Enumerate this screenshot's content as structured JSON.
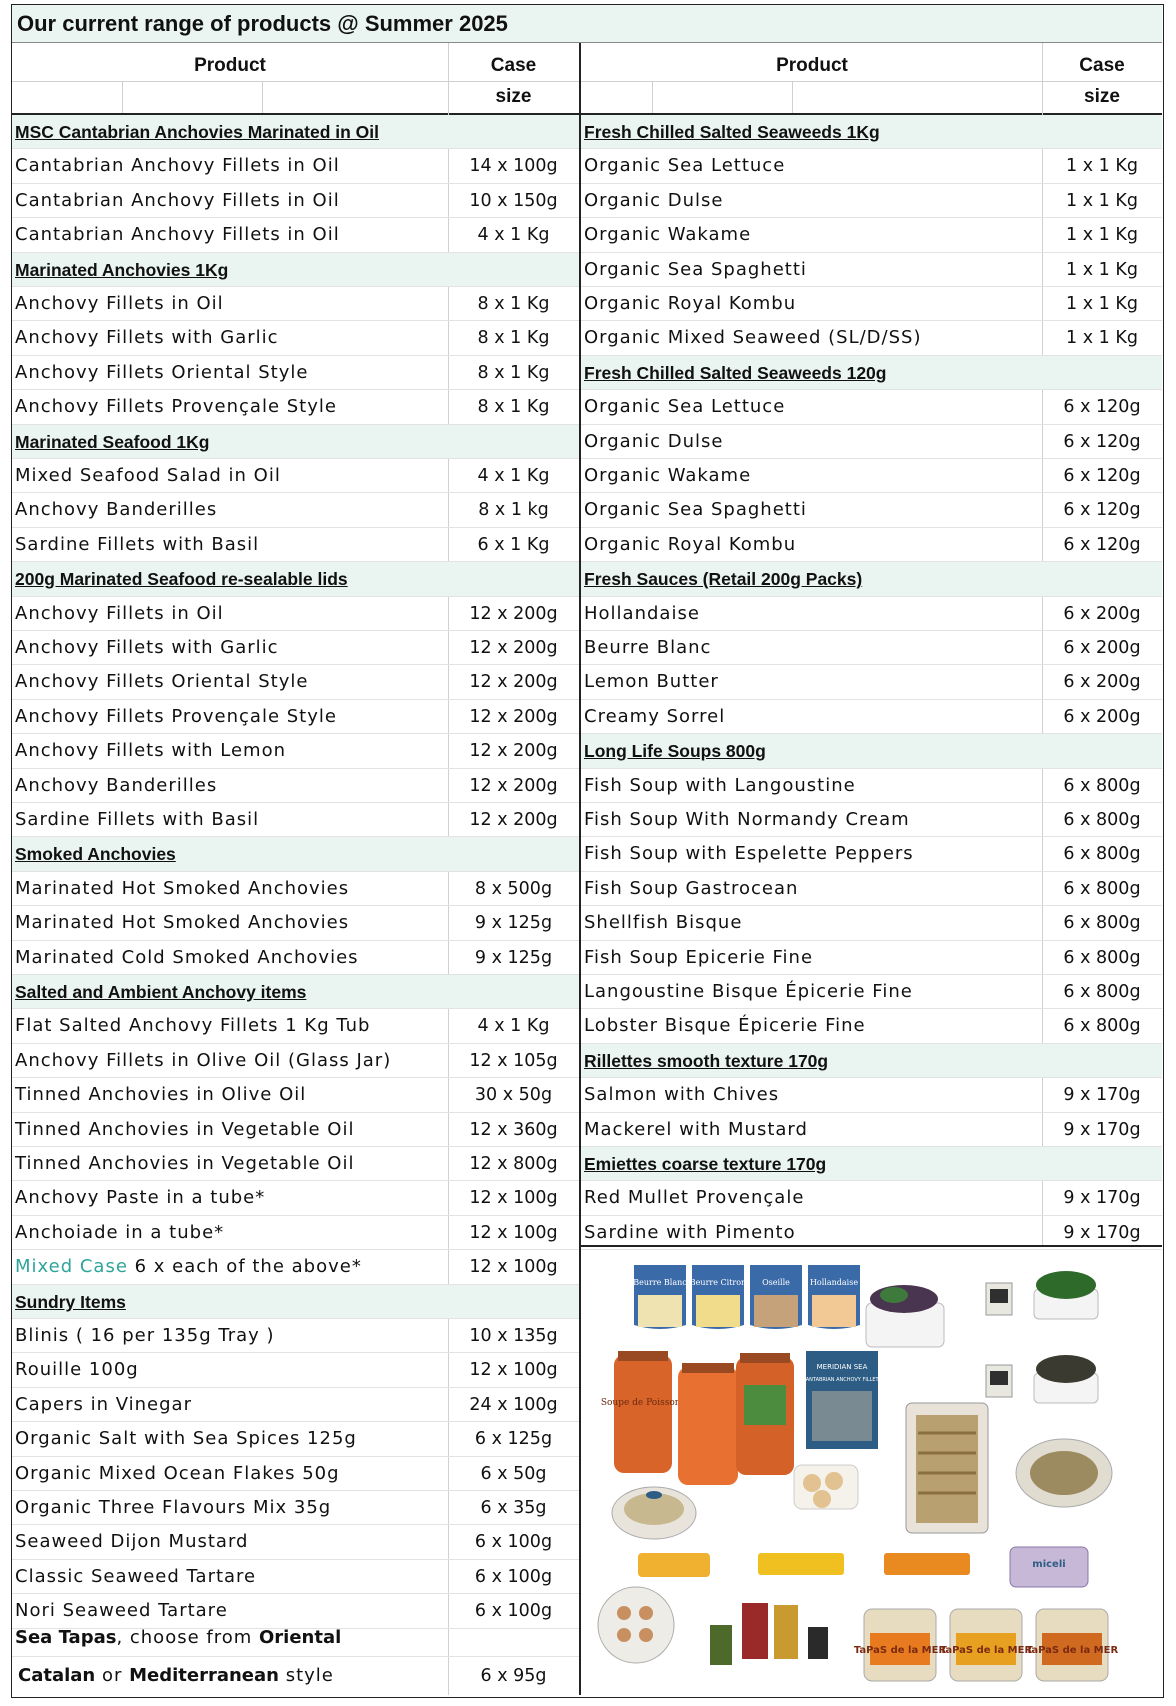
{
  "title": "Our current range of products @  Summer 2025",
  "headers": {
    "product": "Product",
    "case1": "Case",
    "case2": "size"
  },
  "left_rows": [
    {
      "name": "MSC  Cantabrian Anchovies Marinated in Oil ",
      "size": "",
      "section": true
    },
    {
      "name": "Cantabrian Anchovy Fillets in Oil",
      "size": "14 x 100g"
    },
    {
      "name": "Cantabrian Anchovy Fillets in Oil",
      "size": "10 x 150g"
    },
    {
      "name": "Cantabrian Anchovy Fillets in Oil",
      "size": "4 x 1 Kg"
    },
    {
      "name": "Marinated Anchovies 1Kg",
      "size": "",
      "section": true
    },
    {
      "name": "Anchovy Fillets in Oil",
      "size": "8 x 1 Kg"
    },
    {
      "name": "Anchovy Fillets with Garlic",
      "size": "8 x 1 Kg"
    },
    {
      "name": "Anchovy Fillets Oriental Style",
      "size": "8 x 1 Kg"
    },
    {
      "name": "Anchovy Fillets Provençale Style",
      "size": "8 x 1 Kg"
    },
    {
      "name": "Marinated Seafood 1Kg",
      "size": "",
      "section": true
    },
    {
      "name": "Mixed Seafood Salad  in Oil",
      "size": "4 x 1 Kg"
    },
    {
      "name": "Anchovy Banderilles",
      "size": "8 x 1 kg"
    },
    {
      "name": "Sardine Fillets with Basil",
      "size": "6 x 1 Kg"
    },
    {
      "name": "200g  Marinated Seafood re-sealable lids",
      "size": "",
      "section": true
    },
    {
      "name": "Anchovy Fillets in Oil",
      "size": "12 x 200g"
    },
    {
      "name": "Anchovy Fillets with Garlic",
      "size": "12 x 200g"
    },
    {
      "name": "Anchovy Fillets Oriental Style",
      "size": "12 x 200g"
    },
    {
      "name": "Anchovy Fillets Provençale Style",
      "size": "12 x 200g"
    },
    {
      "name": "Anchovy Fillets with Lemon",
      "size": "12 x 200g"
    },
    {
      "name": "Anchovy Banderilles",
      "size": "12 x 200g"
    },
    {
      "name": "Sardine Fillets with Basil",
      "size": "12 x 200g"
    },
    {
      "name": "Smoked  Anchovies",
      "size": "",
      "section": true
    },
    {
      "name": "Marinated  Hot Smoked Anchovies",
      "size": "8 x 500g"
    },
    {
      "name": "Marinated Hot Smoked Anchovies",
      "size": "9 x 125g"
    },
    {
      "name": "Marinated Cold Smoked Anchovies",
      "size": "9 x 125g"
    },
    {
      "name": "Salted and Ambient Anchovy items",
      "size": "",
      "section": true
    },
    {
      "name": "Flat Salted Anchovy Fillets  1 Kg Tub",
      "size": "4 x 1 Kg"
    },
    {
      "name": "Anchovy Fillets in Olive Oil (Glass Jar)",
      "size": "12 x 105g"
    },
    {
      "name": "Tinned Anchovies in Olive Oil",
      "size": "30 x 50g"
    },
    {
      "name": "Tinned Anchovies in Vegetable Oil",
      "size": "12 x 360g"
    },
    {
      "name": "Tinned Anchovies in Vegetable Oil",
      "size": "12 x 800g"
    },
    {
      "name": "Anchovy Paste in a tube*",
      "size": "12 x 100g"
    },
    {
      "name": "Anchoiade in a tube*",
      "size": "12 x 100g"
    },
    {
      "name": " 6 x each of the above*",
      "highlight": "Mixed Case",
      "size": "12 x 100g"
    },
    {
      "name": "Sundry Items",
      "size": "",
      "section": true
    },
    {
      "name": "Blinis ( 16 per 135g Tray )",
      "size": "10 x 135g"
    },
    {
      "name": "Rouille 100g",
      "size": "12 x 100g"
    },
    {
      "name": "Capers in Vinegar",
      "size": "24 x 100g"
    },
    {
      "name": "Organic Salt with Sea Spices 125g",
      "size": "6 x 125g"
    },
    {
      "name": "Organic Mixed Ocean Flakes 50g",
      "size": "6 x 50g"
    },
    {
      "name": "Organic Three Flavours Mix 35g",
      "size": "6 x 35g"
    },
    {
      "name": "Seaweed Dijon Mustard",
      "size": "6 x 100g"
    },
    {
      "name": "Classic Seaweed Tartare",
      "size": "6 x 100g"
    },
    {
      "name": "Nori  Seaweed Tartare",
      "size": "6 x 100g"
    }
  ],
  "tapas": {
    "line1_a": "Sea Tapas",
    "line1_b": ", choose from ",
    "line1_c": "Oriental",
    "line2_a": "Catalan",
    "line2_b": " or ",
    "line2_c": "Mediterranean",
    "line2_d": " style",
    "size": "6 x 95g"
  },
  "right_rows": [
    {
      "name": "Fresh Chilled Salted Seaweeds 1Kg",
      "size": "",
      "section": true
    },
    {
      "name": "Organic Sea Lettuce",
      "size": "1 x 1 Kg"
    },
    {
      "name": "Organic Dulse",
      "size": "1 x 1 Kg"
    },
    {
      "name": "Organic Wakame",
      "size": "1 x 1 Kg"
    },
    {
      "name": "Organic Sea Spaghetti",
      "size": "1 x 1 Kg"
    },
    {
      "name": "Organic Royal Kombu",
      "size": "1 x 1 Kg"
    },
    {
      "name": "Organic Mixed Seaweed (SL/D/SS)",
      "size": "1 x 1 Kg"
    },
    {
      "name": "Fresh Chilled Salted Seaweeds 120g",
      "size": "",
      "section": true
    },
    {
      "name": "Organic Sea Lettuce",
      "size": "6 x 120g"
    },
    {
      "name": "Organic Dulse",
      "size": "6 x 120g"
    },
    {
      "name": "Organic Wakame",
      "size": "6 x 120g"
    },
    {
      "name": "Organic Sea Spaghetti",
      "size": "6 x 120g"
    },
    {
      "name": "Organic Royal Kombu",
      "size": "6 x 120g"
    },
    {
      "name": "Fresh Sauces (Retail 200g Packs)",
      "size": "",
      "section": true
    },
    {
      "name": "Hollandaise",
      "size": "6 x 200g"
    },
    {
      "name": "Beurre Blanc",
      "size": "6 x 200g"
    },
    {
      "name": "Lemon Butter",
      "size": "6 x 200g"
    },
    {
      "name": "Creamy Sorrel",
      "size": "6 x 200g"
    },
    {
      "name": "Long Life Soups 800g",
      "size": "",
      "section": true
    },
    {
      "name": "Fish Soup with Langoustine",
      "size": "6 x 800g"
    },
    {
      "name": "Fish Soup With Normandy Cream",
      "size": "6 x 800g"
    },
    {
      "name": "Fish Soup with Espelette Peppers",
      "size": "6 x 800g"
    },
    {
      "name": "Fish Soup Gastrocean",
      "size": "6 x 800g"
    },
    {
      "name": "Shellfish Bisque",
      "size": "6 x 800g"
    },
    {
      "name": "Fish Soup Epicerie Fine",
      "size": "6 x 800g"
    },
    {
      "name": "Langoustine Bisque Épicerie Fine",
      "size": "6 x 800g"
    },
    {
      "name": "Lobster Bisque Épicerie Fine",
      "size": "6 x 800g"
    },
    {
      "name": "Rillettes smooth texture 170g",
      "size": "",
      "section": true
    },
    {
      "name": "Salmon with Chives",
      "size": "9 x 170g"
    },
    {
      "name": "Mackerel with Mustard",
      "size": "9 x 170g"
    },
    {
      "name": "Emiettes coarse texture 170g",
      "size": "",
      "section": true
    },
    {
      "name": "Red Mullet Provençale",
      "size": "9 x 170g"
    },
    {
      "name": "Sardine with Pimento",
      "size": "9 x 170g"
    }
  ],
  "photo_labels": {
    "p1": "Beurre Blanc",
    "p2": "Beurre Citron",
    "p3": "Oseille",
    "p4": "Hollandaise",
    "jar": "Soupe de Poissons",
    "tin_brand": "MERIDIAN SEA",
    "tin_text": "CANTABRIAN ANCHOVY FILLETS",
    "micell": "miceli",
    "tapas": "TaPaS de la MER"
  },
  "colors": {
    "section_bg": "#eaf5f2",
    "mixed_case": "#2ea59a",
    "border": "#222222"
  }
}
